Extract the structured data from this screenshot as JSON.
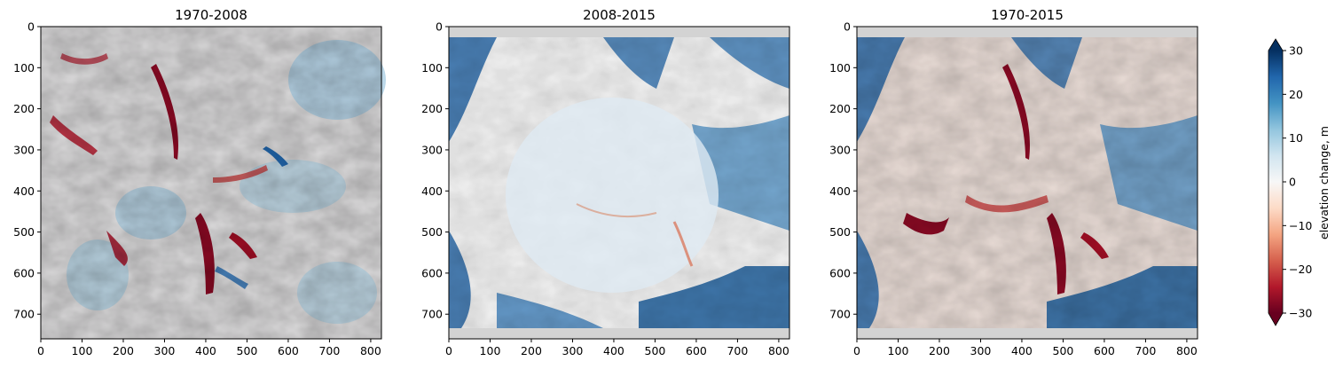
{
  "chart_data": {
    "type": "heatmap",
    "colormap": "RdBu",
    "nodata_color": "#d3d3d3",
    "panels": [
      {
        "title": "1970-2008",
        "x_ticks": [
          "0",
          "100",
          "200",
          "300",
          "400",
          "500",
          "600",
          "700",
          "800"
        ],
        "y_ticks": [
          "0",
          "100",
          "200",
          "300",
          "400",
          "500",
          "600",
          "700"
        ],
        "xlim": [
          0,
          826
        ],
        "ylim": [
          760,
          0
        ]
      },
      {
        "title": "2008-2015",
        "x_ticks": [
          "0",
          "100",
          "200",
          "300",
          "400",
          "500",
          "600",
          "700",
          "800"
        ],
        "y_ticks": [
          "0",
          "100",
          "200",
          "300",
          "400",
          "500",
          "600",
          "700"
        ],
        "xlim": [
          0,
          826
        ],
        "ylim": [
          760,
          0
        ]
      },
      {
        "title": "1970-2015",
        "x_ticks": [
          "0",
          "100",
          "200",
          "300",
          "400",
          "500",
          "600",
          "700",
          "800"
        ],
        "y_ticks": [
          "0",
          "100",
          "200",
          "300",
          "400",
          "500",
          "600",
          "700"
        ],
        "xlim": [
          0,
          826
        ],
        "ylim": [
          760,
          0
        ]
      }
    ],
    "colorbar": {
      "label": "elevation change, m",
      "ticks": [
        "30",
        "20",
        "10",
        "0",
        "−10",
        "−20",
        "−30"
      ],
      "range": [
        -30,
        30
      ],
      "extend": "both"
    }
  }
}
